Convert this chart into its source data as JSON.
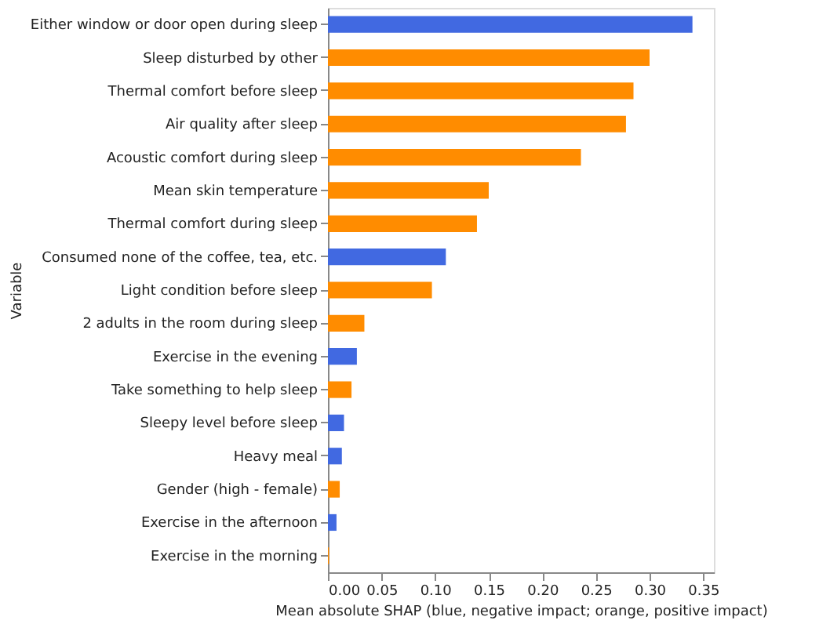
{
  "chart_data": {
    "type": "bar",
    "orientation": "horizontal",
    "xlabel": "Mean absolute SHAP (blue, negative impact; orange, positive impact)",
    "ylabel": "Variable",
    "categories": [
      "Either window or door open during sleep",
      "Sleep disturbed by other",
      "Thermal comfort before sleep",
      "Air quality after sleep",
      "Acoustic comfort during sleep",
      "Mean skin temperature",
      "Thermal comfort during sleep",
      "Consumed none of the coffee, tea, etc.",
      "Light condition before sleep",
      "2 adults in the room during sleep",
      "Exercise in the evening",
      "Take something to help sleep",
      "Sleepy level before sleep",
      "Heavy meal",
      "Gender (high - female)",
      "Exercise in the afternoon",
      "Exercise in the morning"
    ],
    "values": [
      0.34,
      0.3,
      0.285,
      0.278,
      0.236,
      0.15,
      0.139,
      0.11,
      0.097,
      0.034,
      0.027,
      0.022,
      0.015,
      0.013,
      0.011,
      0.008,
      0.001
    ],
    "colors": [
      "#4169e1",
      "#ff8c00",
      "#ff8c00",
      "#ff8c00",
      "#ff8c00",
      "#ff8c00",
      "#ff8c00",
      "#4169e1",
      "#ff8c00",
      "#ff8c00",
      "#4169e1",
      "#ff8c00",
      "#4169e1",
      "#4169e1",
      "#ff8c00",
      "#4169e1",
      "#ff8c00"
    ],
    "xlim": [
      0,
      0.36
    ],
    "xticks": [
      {
        "value": 0,
        "label": "0.00"
      },
      0.05,
      {
        "value": 0.1,
        "label": "0.10"
      },
      0.15,
      {
        "value": 0.2,
        "label": "0.20"
      },
      0.25,
      {
        "value": 0.3,
        "label": "0.30"
      },
      0.35
    ],
    "grid": false
  }
}
